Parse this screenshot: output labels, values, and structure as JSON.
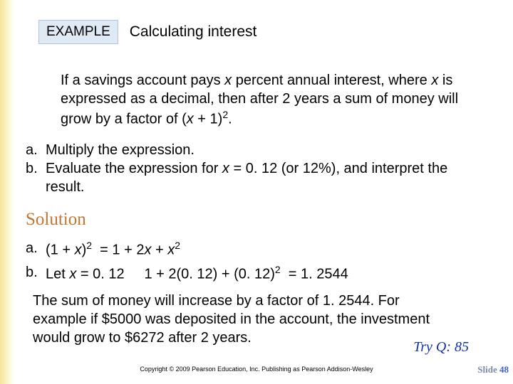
{
  "colors": {
    "badge_bg": "#dfeaf5",
    "badge_border": "#b0c4de",
    "solution_heading": "#c07830",
    "tryq_color": "#1030b0",
    "left_strip_start": "#f5e49a",
    "slide_num_text": "#7a8aa8",
    "slide_num_digit": "#4060c0"
  },
  "header": {
    "badge": "EXAMPLE",
    "title": "Calculating interest"
  },
  "intro": {
    "line1a": "If a savings account pays ",
    "line1_var": "x",
    "line1b": " percent annual interest, where ",
    "line1_var2": "x",
    "line1c": " is expressed as a decimal, then after 2 years a sum of money will grow by a factor of (",
    "line1_var3": "x",
    "line1d": " + 1)",
    "line1_exp": "2",
    "line1e": "."
  },
  "questions": {
    "a_label": "a.",
    "a_text": "Multiply the expression.",
    "b_label": "b.",
    "b_text1": "Evaluate the expression for ",
    "b_var": "x",
    "b_text2": " = 0. 12 (or 12%), and interpret the result."
  },
  "solution": {
    "heading": "Solution",
    "a_label": "a.",
    "a_lhs1": "(1 + ",
    "a_var1": "x",
    "a_lhs2": ")",
    "a_exp1": "2",
    "a_eq": "  = 1 + 2",
    "a_var2": "x",
    "a_mid": " + ",
    "a_var3": "x",
    "a_exp2": "2",
    "b_label": "b.",
    "b_let": "Let ",
    "b_var": "x",
    "b_val": " = 0. 12",
    "b_calc1": "1 + 2(0. 12) + (0. 12)",
    "b_exp": "2",
    "b_result": "  = 1. 2544"
  },
  "conclusion": {
    "text": "The sum of money will increase by a factor of 1. 2544. For example if $5000 was deposited in the account, the investment would grow to $6272 after 2 years."
  },
  "tryq": "Try Q: 85",
  "copyright": "Copyright © 2009 Pearson Education, Inc.  Publishing as Pearson Addison-Wesley",
  "slide": {
    "label": "Slide ",
    "num": "48"
  }
}
